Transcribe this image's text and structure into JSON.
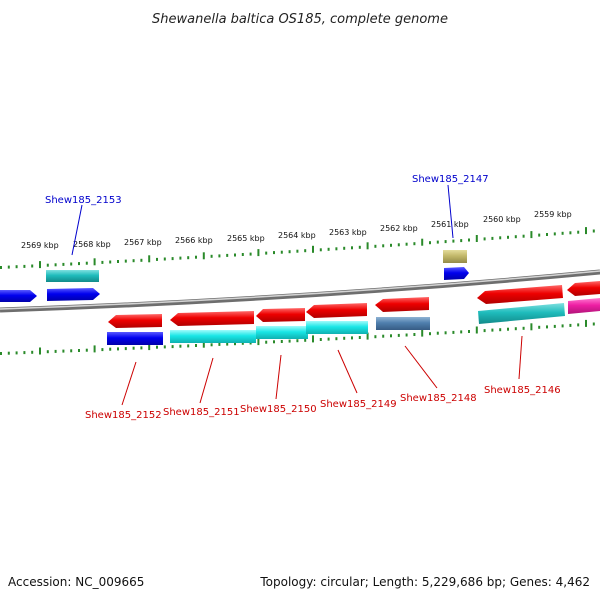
{
  "title": "Shewanella baltica OS185, complete genome",
  "footer": {
    "accession": "Accession: NC_009665",
    "summary": "Topology: circular; Length: 5,229,686 bp; Genes: 4,462"
  },
  "colors": {
    "label_upper": "#0000cc",
    "label_lower": "#cc0000",
    "tick": "#2a8a2a",
    "backbone": "#888888"
  },
  "scale_labels": [
    "2569 kbp",
    "2568 kbp",
    "2567 kbp",
    "2566 kbp",
    "2565 kbp",
    "2564 kbp",
    "2563 kbp",
    "2562 kbp",
    "2561 kbp",
    "2560 kbp",
    "2559 kbp"
  ],
  "upper_genes": [
    {
      "label": "Shew185_2153"
    },
    {
      "label": "Shew185_2147"
    }
  ],
  "lower_genes": [
    {
      "label": "Shew185_2152"
    },
    {
      "label": "Shew185_2151"
    },
    {
      "label": "Shew185_2150"
    },
    {
      "label": "Shew185_2149"
    },
    {
      "label": "Shew185_2148"
    },
    {
      "label": "Shew185_2146"
    }
  ]
}
